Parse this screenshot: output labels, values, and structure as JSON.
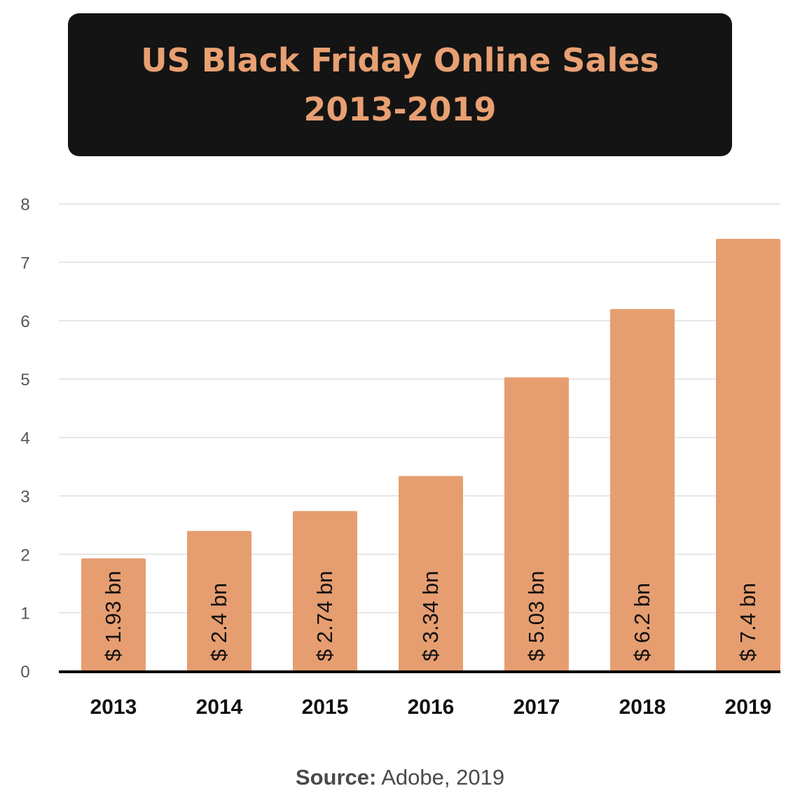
{
  "title": {
    "line1": "US Black Friday Online Sales",
    "line2": "2013-2019"
  },
  "source": {
    "label": "Source:",
    "text": "Adobe, 2019"
  },
  "colors": {
    "bar": "#e69e70",
    "title_bg": "#141414",
    "title_text": "#e8a072",
    "grid": "#d9d9d9",
    "axis": "#000000"
  },
  "chart_data": {
    "type": "bar",
    "title": "US Black Friday Online Sales 2013-2019",
    "categories": [
      "2013",
      "2014",
      "2015",
      "2016",
      "2017",
      "2018",
      "2019"
    ],
    "values": [
      1.93,
      2.4,
      2.74,
      3.34,
      5.03,
      6.2,
      7.4
    ],
    "data_labels": [
      "$ 1.93 bn",
      "$ 2.4 bn",
      "$ 2.74 bn",
      "$ 3.34 bn",
      "$ 5.03 bn",
      "$ 6.2 bn",
      "$ 7.4 bn"
    ],
    "ylim": [
      0,
      8
    ],
    "yticks": [
      "0",
      "1",
      "2",
      "3",
      "4",
      "5",
      "6",
      "7",
      "8"
    ],
    "xlabel": "",
    "ylabel": "",
    "grid": true,
    "legend": "none"
  }
}
